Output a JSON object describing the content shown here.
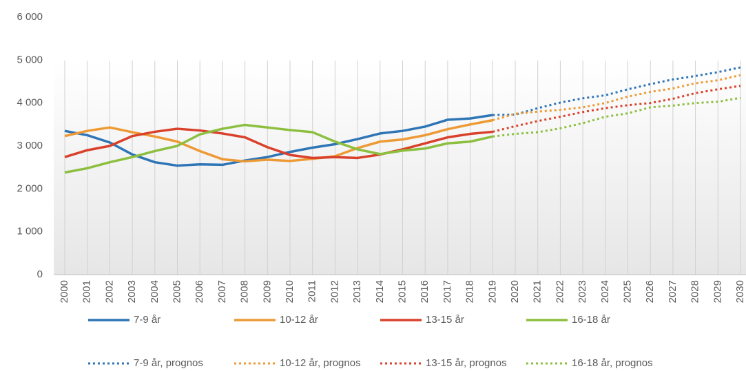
{
  "chart_data": {
    "type": "line",
    "categories": [
      "2000",
      "2001",
      "2002",
      "2003",
      "2004",
      "2005",
      "2006",
      "2007",
      "2008",
      "2009",
      "2010",
      "2011",
      "2012",
      "2013",
      "2014",
      "2015",
      "2016",
      "2017",
      "2018",
      "2019",
      "2020",
      "2021",
      "2022",
      "2023",
      "2024",
      "2025",
      "2026",
      "2027",
      "2028",
      "2029",
      "2030"
    ],
    "ylim": [
      0,
      6000
    ],
    "yticks": [
      0,
      {
        "value": 1000,
        "label": "1 000"
      },
      {
        "value": 2000,
        "label": "2 000"
      },
      {
        "value": 3000,
        "label": "3 000"
      },
      {
        "value": 4000,
        "label": "4 000"
      },
      {
        "value": 5000,
        "label": "5 000"
      },
      {
        "value": 6000,
        "label": "6 000"
      }
    ],
    "grid": "vertical",
    "legend": "bottom",
    "series": [
      {
        "name": "7-9 år",
        "color": "#2e75b6",
        "style": "solid",
        "values": [
          3350,
          3250,
          3080,
          2800,
          2620,
          2540,
          2570,
          2560,
          2660,
          2740,
          2860,
          2960,
          3040,
          3160,
          3290,
          3350,
          3450,
          3610,
          3640,
          3720,
          null,
          null,
          null,
          null,
          null,
          null,
          null,
          null,
          null,
          null,
          null
        ]
      },
      {
        "name": "10-12 år",
        "color": "#ed9a35",
        "style": "solid",
        "values": [
          3230,
          3350,
          3430,
          3320,
          3220,
          3100,
          2880,
          2690,
          2640,
          2680,
          2650,
          2700,
          2760,
          2950,
          3100,
          3150,
          3250,
          3390,
          3500,
          3600,
          null,
          null,
          null,
          null,
          null,
          null,
          null,
          null,
          null,
          null,
          null
        ]
      },
      {
        "name": "13-15 år",
        "color": "#d9412b",
        "style": "solid",
        "values": [
          2740,
          2900,
          3000,
          3230,
          3330,
          3400,
          3360,
          3290,
          3200,
          2970,
          2790,
          2720,
          2740,
          2720,
          2800,
          2920,
          3060,
          3200,
          3280,
          3330,
          null,
          null,
          null,
          null,
          null,
          null,
          null,
          null,
          null,
          null,
          null
        ]
      },
      {
        "name": "16-18 år",
        "color": "#8cbf3f",
        "style": "solid",
        "values": [
          2380,
          2480,
          2620,
          2740,
          2880,
          3000,
          3270,
          3400,
          3490,
          3430,
          3370,
          3320,
          3100,
          2920,
          2810,
          2890,
          2940,
          3060,
          3100,
          3220,
          null,
          null,
          null,
          null,
          null,
          null,
          null,
          null,
          null,
          null,
          null
        ]
      },
      {
        "name": "7-9 år, prognos",
        "color": "#2e75b6",
        "style": "dotted",
        "values": [
          null,
          null,
          null,
          null,
          null,
          null,
          null,
          null,
          null,
          null,
          null,
          null,
          null,
          null,
          null,
          null,
          null,
          null,
          null,
          3720,
          3730,
          3880,
          4010,
          4110,
          4180,
          4320,
          4440,
          4550,
          4630,
          4720,
          4830
        ]
      },
      {
        "name": "10-12 år, prognos",
        "color": "#ed9a35",
        "style": "dotted",
        "values": [
          null,
          null,
          null,
          null,
          null,
          null,
          null,
          null,
          null,
          null,
          null,
          null,
          null,
          null,
          null,
          null,
          null,
          null,
          null,
          3600,
          3750,
          3800,
          3840,
          3900,
          4000,
          4150,
          4260,
          4340,
          4460,
          4530,
          4650
        ]
      },
      {
        "name": "13-15 år, prognos",
        "color": "#d9412b",
        "style": "dotted",
        "values": [
          null,
          null,
          null,
          null,
          null,
          null,
          null,
          null,
          null,
          null,
          null,
          null,
          null,
          null,
          null,
          null,
          null,
          null,
          null,
          3330,
          3460,
          3580,
          3680,
          3790,
          3880,
          3950,
          4000,
          4100,
          4230,
          4320,
          4400
        ]
      },
      {
        "name": "16-18 år, prognos",
        "color": "#8cbf3f",
        "style": "dotted",
        "values": [
          null,
          null,
          null,
          null,
          null,
          null,
          null,
          null,
          null,
          null,
          null,
          null,
          null,
          null,
          null,
          null,
          null,
          null,
          null,
          3220,
          3280,
          3320,
          3410,
          3530,
          3680,
          3760,
          3900,
          3940,
          4000,
          4030,
          4120
        ]
      }
    ]
  }
}
